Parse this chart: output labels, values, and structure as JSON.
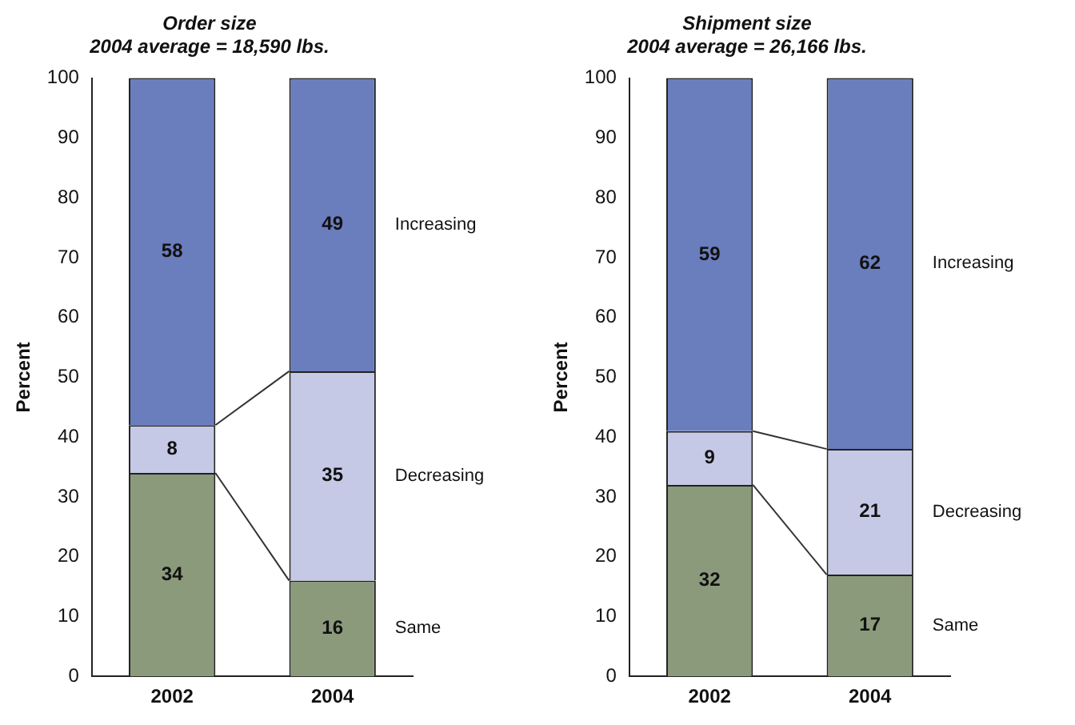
{
  "chart_data": [
    {
      "type": "bar",
      "title": "Order size",
      "subtitle": "2004 average = 18,590 lbs.",
      "ylabel": "Percent",
      "categories": [
        "2002",
        "2004"
      ],
      "stacked": true,
      "data_labels": true,
      "legend": false,
      "grid": false,
      "ylim": [
        0,
        100
      ],
      "yticks": [
        0,
        10,
        20,
        30,
        40,
        50,
        60,
        70,
        80,
        90,
        100
      ],
      "series": [
        {
          "name": "Same",
          "color": "#8c9a7c",
          "values": [
            34,
            16
          ]
        },
        {
          "name": "Decreasing",
          "color": "#c5c9e6",
          "values": [
            8,
            35
          ]
        },
        {
          "name": "Increasing",
          "color": "#6a7dbd",
          "values": [
            58,
            49
          ]
        }
      ]
    },
    {
      "type": "bar",
      "title": "Shipment size",
      "subtitle": "2004 average = 26,166 lbs.",
      "ylabel": "Percent",
      "categories": [
        "2002",
        "2004"
      ],
      "stacked": true,
      "data_labels": true,
      "legend": false,
      "grid": false,
      "ylim": [
        0,
        100
      ],
      "yticks": [
        0,
        10,
        20,
        30,
        40,
        50,
        60,
        70,
        80,
        90,
        100
      ],
      "series": [
        {
          "name": "Same",
          "color": "#8c9a7c",
          "values": [
            32,
            17
          ]
        },
        {
          "name": "Decreasing",
          "color": "#c5c9e6",
          "values": [
            9,
            21
          ]
        },
        {
          "name": "Increasing",
          "color": "#6a7dbd",
          "values": [
            59,
            62
          ]
        }
      ]
    }
  ]
}
